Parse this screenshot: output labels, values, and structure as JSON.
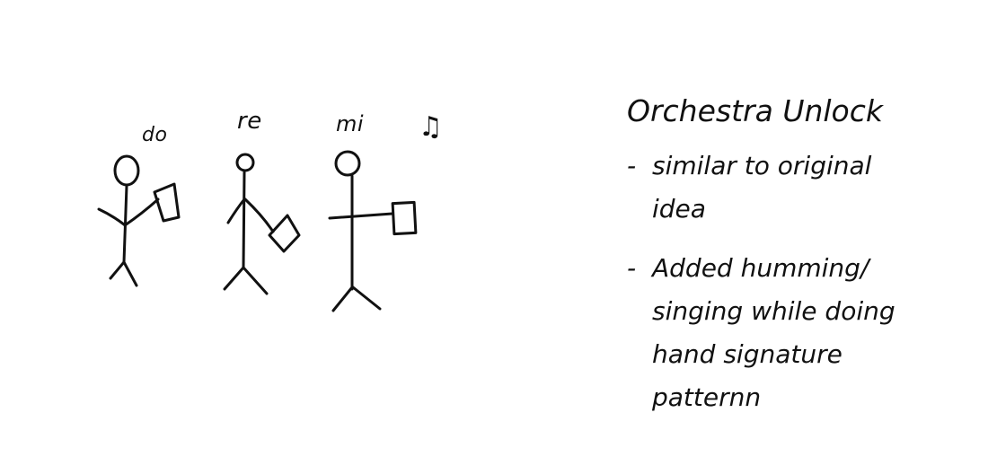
{
  "sketch": {
    "solfege": {
      "do": "do",
      "re": "re",
      "mi": "mi"
    },
    "note_symbol": "♫",
    "figures": [
      "figure-do",
      "figure-re",
      "figure-mi"
    ]
  },
  "notes": {
    "title": "Orchestra Unlock",
    "bullets": [
      {
        "dash": "-",
        "lines": [
          "similar to original",
          "idea"
        ]
      },
      {
        "dash": "-",
        "lines": [
          "Added humming/",
          "singing while doing",
          "hand signature",
          "patternn"
        ]
      }
    ]
  }
}
